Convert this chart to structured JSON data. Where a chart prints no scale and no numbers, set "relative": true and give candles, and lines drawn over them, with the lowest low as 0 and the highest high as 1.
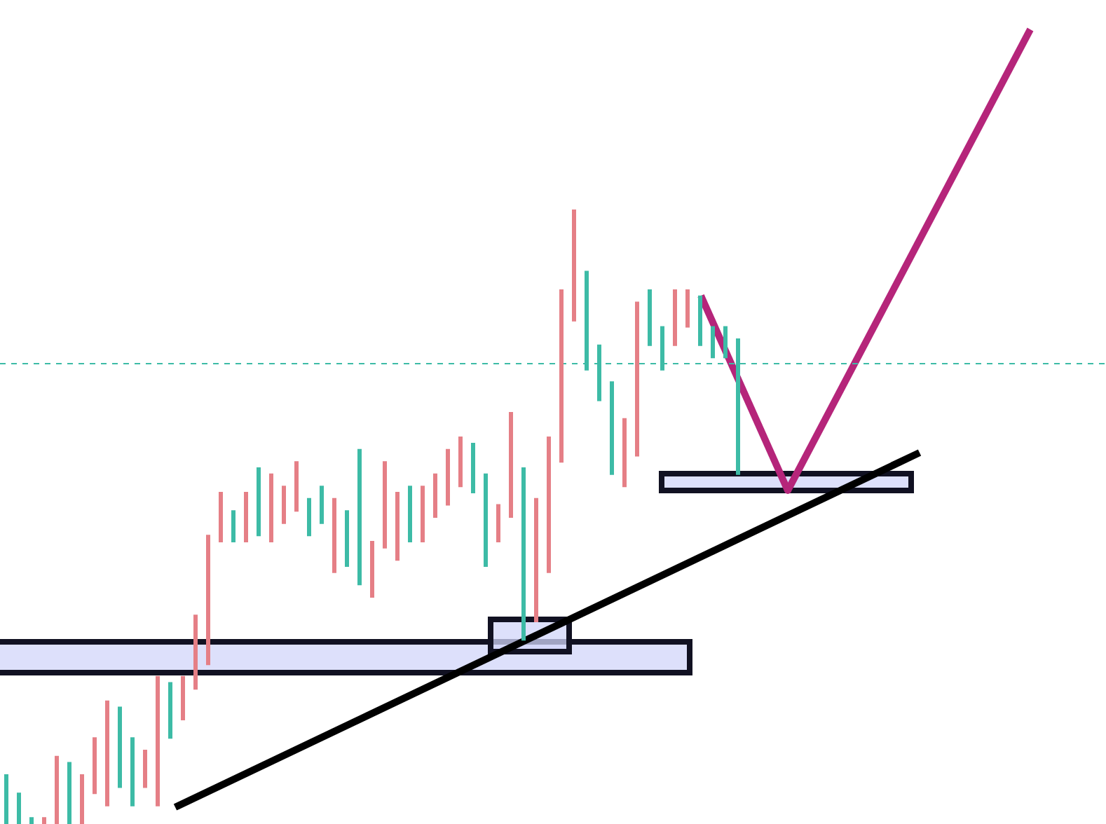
{
  "chart_data": {
    "type": "candlestick",
    "relative": true,
    "categories": [
      null,
      null,
      null,
      null,
      null,
      null,
      null,
      null,
      null,
      null,
      null,
      null,
      null,
      null,
      null,
      null,
      null,
      null,
      null,
      null,
      null,
      null,
      null,
      null,
      null,
      null,
      null,
      null,
      null,
      null,
      null,
      null,
      null,
      null,
      null,
      null,
      null,
      null,
      null,
      null,
      null,
      null,
      null,
      null,
      null,
      null,
      null,
      null,
      null,
      null,
      null,
      null,
      null,
      null,
      null,
      null,
      null,
      null,
      null
    ],
    "ohlc": [
      [
        0.08,
        0.08,
        0,
        0
      ],
      [
        0.05,
        0.05,
        0,
        0
      ],
      [
        0.01,
        0.01,
        0,
        0
      ],
      [
        0,
        0.01,
        0,
        0.01
      ],
      [
        0,
        0.11,
        0,
        0.11
      ],
      [
        0.1,
        0.1,
        0,
        0
      ],
      [
        0,
        0.08,
        0,
        0.08
      ],
      [
        0.05,
        0.14,
        0.05,
        0.14
      ],
      [
        0.03,
        0.2,
        0.03,
        0.2
      ],
      [
        0.19,
        0.19,
        0.06,
        0.06
      ],
      [
        0.14,
        0.14,
        0.03,
        0.03
      ],
      [
        0.06,
        0.12,
        0.06,
        0.12
      ],
      [
        0.03,
        0.24,
        0.03,
        0.24
      ],
      [
        0.23,
        0.23,
        0.14,
        0.14
      ],
      [
        0.17,
        0.24,
        0.17,
        0.24
      ],
      [
        0.22,
        0.34,
        0.22,
        0.34
      ],
      [
        0.26,
        0.47,
        0.26,
        0.47
      ],
      [
        0.46,
        0.54,
        0.46,
        0.54
      ],
      [
        0.51,
        0.51,
        0.46,
        0.46
      ],
      [
        0.46,
        0.54,
        0.46,
        0.54
      ],
      [
        0.58,
        0.58,
        0.47,
        0.47
      ],
      [
        0.46,
        0.57,
        0.46,
        0.57
      ],
      [
        0.49,
        0.55,
        0.49,
        0.55
      ],
      [
        0.51,
        0.59,
        0.51,
        0.59
      ],
      [
        0.53,
        0.53,
        0.47,
        0.47
      ],
      [
        0.55,
        0.55,
        0.49,
        0.49
      ],
      [
        0.41,
        0.53,
        0.41,
        0.53
      ],
      [
        0.51,
        0.51,
        0.42,
        0.42
      ],
      [
        0.61,
        0.61,
        0.39,
        0.39
      ],
      [
        0.37,
        0.46,
        0.37,
        0.46
      ],
      [
        0.45,
        0.59,
        0.45,
        0.59
      ],
      [
        0.43,
        0.54,
        0.43,
        0.54
      ],
      [
        0.55,
        0.55,
        0.46,
        0.46
      ],
      [
        0.46,
        0.55,
        0.46,
        0.55
      ],
      [
        0.5,
        0.57,
        0.5,
        0.57
      ],
      [
        0.52,
        0.61,
        0.52,
        0.61
      ],
      [
        0.55,
        0.63,
        0.55,
        0.63
      ],
      [
        0.62,
        0.62,
        0.54,
        0.54
      ],
      [
        0.57,
        0.57,
        0.42,
        0.42
      ],
      [
        0.46,
        0.52,
        0.46,
        0.52
      ],
      [
        0.5,
        0.67,
        0.5,
        0.67
      ],
      [
        0.58,
        0.58,
        0.3,
        0.3
      ],
      [
        0.33,
        0.53,
        0.33,
        0.53
      ],
      [
        0.41,
        0.63,
        0.41,
        0.63
      ],
      [
        0.59,
        0.87,
        0.59,
        0.87
      ],
      [
        0.82,
        1,
        0.82,
        1
      ],
      [
        0.9,
        0.9,
        0.74,
        0.74
      ],
      [
        0.78,
        0.78,
        0.69,
        0.69
      ],
      [
        0.72,
        0.72,
        0.57,
        0.57
      ],
      [
        0.55,
        0.66,
        0.55,
        0.66
      ],
      [
        0.6,
        0.85,
        0.6,
        0.85
      ],
      [
        0.87,
        0.87,
        0.78,
        0.78
      ],
      [
        0.81,
        0.81,
        0.74,
        0.74
      ],
      [
        0.78,
        0.87,
        0.78,
        0.87
      ],
      [
        0.81,
        0.87,
        0.81,
        0.87
      ],
      [
        0.86,
        0.86,
        0.78,
        0.78
      ],
      [
        0.81,
        0.81,
        0.76,
        0.76
      ],
      [
        0.81,
        0.81,
        0.76,
        0.76
      ],
      [
        0.79,
        0.79,
        0.57,
        0.57
      ]
    ],
    "colors": [
      "#3dbba6",
      "#3dbba6",
      "#3dbba6",
      "#e57f86",
      "#e57f86",
      "#3dbba6",
      "#e57f86",
      "#e57f86",
      "#e57f86",
      "#3dbba6",
      "#3dbba6",
      "#e57f86",
      "#e57f86",
      "#3dbba6",
      "#e57f86",
      "#e57f86",
      "#e57f86",
      "#e57f86",
      "#3dbba6",
      "#e57f86",
      "#3dbba6",
      "#e57f86",
      "#e57f86",
      "#e57f86",
      "#3dbba6",
      "#3dbba6",
      "#e57f86",
      "#3dbba6",
      "#3dbba6",
      "#e57f86",
      "#e57f86",
      "#e57f86",
      "#3dbba6",
      "#e57f86",
      "#e57f86",
      "#e57f86",
      "#e57f86",
      "#3dbba6",
      "#3dbba6",
      "#e57f86",
      "#e57f86",
      "#3dbba6",
      "#e57f86",
      "#e57f86",
      "#e57f86",
      "#e57f86",
      "#3dbba6",
      "#3dbba6",
      "#3dbba6",
      "#e57f86",
      "#e57f86",
      "#3dbba6",
      "#3dbba6",
      "#e57f86",
      "#e57f86",
      "#3dbba6",
      "#3dbba6",
      "#3dbba6",
      "#3dbba6"
    ],
    "ref_lines": [
      {
        "axis": "y",
        "value": 0.75,
        "color": "#3dbba6",
        "line_style": "dashed"
      }
    ]
  }
}
